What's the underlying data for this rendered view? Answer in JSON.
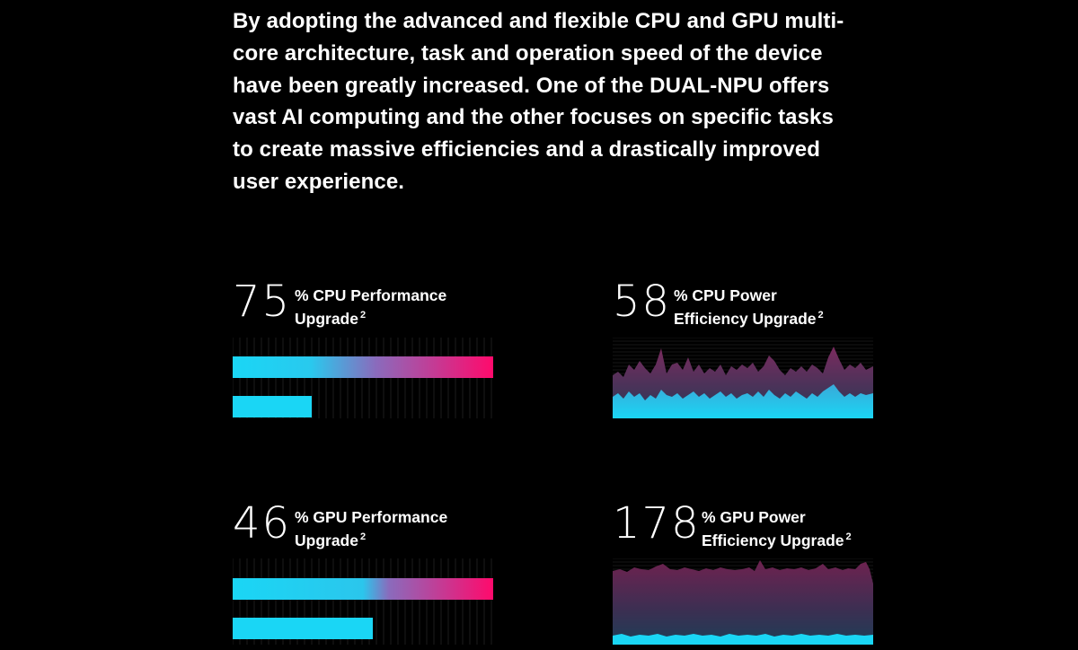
{
  "intro": {
    "lines": [
      "By adopting the advanced and flexible CPU and GPU multi-",
      "core architecture, task and operation speed of the device",
      "have been greatly increased. One of the DUAL-NPU offers",
      "vast AI computing and the other focuses on specific tasks",
      "to create massive efficiencies and a drastically improved",
      "user experience."
    ]
  },
  "stats": {
    "cpu_perf": {
      "value": "75",
      "label_line1": "% CPU Performance",
      "label_line2": "Upgrade",
      "sup": "2",
      "upgrade_percent": 75
    },
    "cpu_power": {
      "value": "58",
      "label_line1": "% CPU Power",
      "label_line2": "Efficiency Upgrade",
      "sup": "2",
      "upgrade_percent": 58
    },
    "gpu_perf": {
      "value": "46",
      "label_line1": "% GPU Performance",
      "label_line2": "Upgrade",
      "sup": "2",
      "upgrade_percent": 46
    },
    "gpu_power": {
      "value": "178",
      "label_line1": "% GPU Power",
      "label_line2": "Efficiency Upgrade",
      "sup": "2",
      "upgrade_percent": 178
    }
  },
  "colors": {
    "background": "#000000",
    "cyan": "#1ad6f5",
    "magenta": "#ff0a6c",
    "area_dark": "#3b2a4d"
  }
}
